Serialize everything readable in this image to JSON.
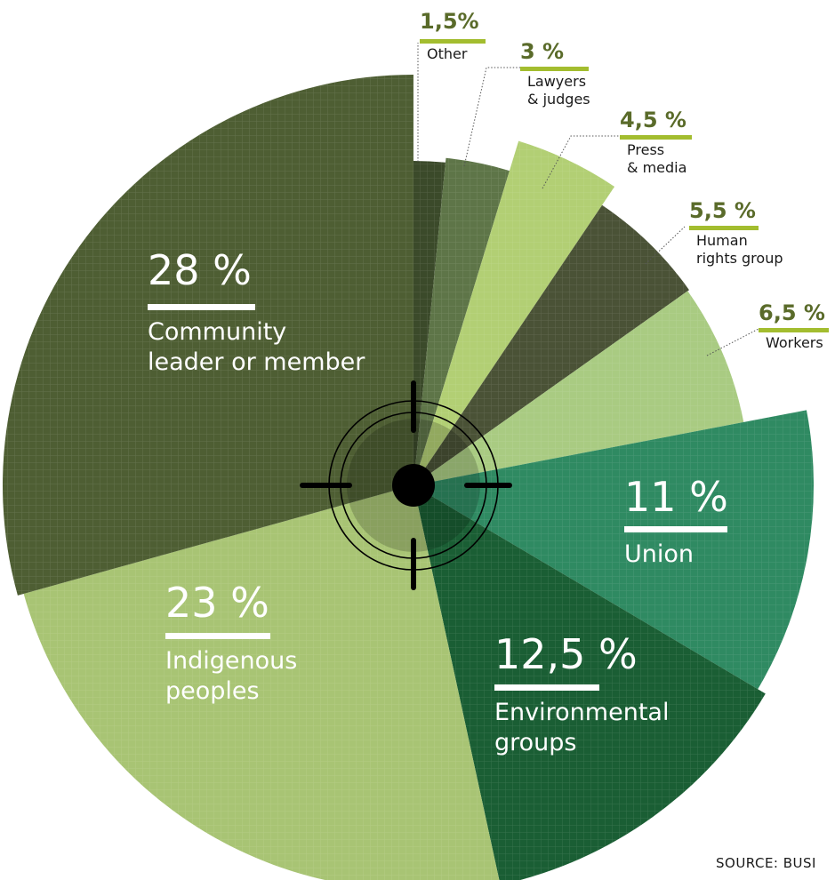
{
  "chart_data": {
    "type": "pie",
    "unit": "%",
    "slices": [
      {
        "label": "Other",
        "value": 1.5,
        "value_text": "1,5%",
        "color": "#3b4a2a"
      },
      {
        "label": "Lawyers & judges",
        "label_lines": [
          "Lawyers",
          "& judges"
        ],
        "value": 3,
        "value_text": "3 %",
        "color": "#5e7548"
      },
      {
        "label": "Press & media",
        "label_lines": [
          "Press",
          "& media"
        ],
        "value": 4.5,
        "value_text": "4,5 %",
        "color": "#b2cf74"
      },
      {
        "label": "Human rights group",
        "label_lines": [
          "Human",
          "rights group"
        ],
        "value": 5.5,
        "value_text": "5,5 %",
        "color": "#4a5236"
      },
      {
        "label": "Workers",
        "value": 6.5,
        "value_text": "6,5 %",
        "color": "#a9cb82"
      },
      {
        "label": "Union",
        "value": 11,
        "value_text": "11 %",
        "color": "#2f8a62"
      },
      {
        "label": "Environmental groups",
        "label_lines": [
          "Environmental",
          "groups"
        ],
        "value": 12.5,
        "value_text": "12,5 %",
        "color": "#1a5e34"
      },
      {
        "label": "Indigenous peoples",
        "label_lines": [
          "Indigenous",
          "peoples"
        ],
        "value": 23,
        "value_text": "23 %",
        "color": "#a8c474"
      },
      {
        "label": "Community leader or member",
        "label_lines": [
          "Community",
          "leader or member"
        ],
        "value": 28,
        "value_text": "28 %",
        "color": "#4e5e33"
      }
    ],
    "source": "SOURCE: BUSI"
  },
  "colors": {
    "accent_bar": "#a3bd2f",
    "small_value_text": "#5a6b2a",
    "target": "#000000"
  },
  "icons": [
    "crosshair-target-icon"
  ]
}
